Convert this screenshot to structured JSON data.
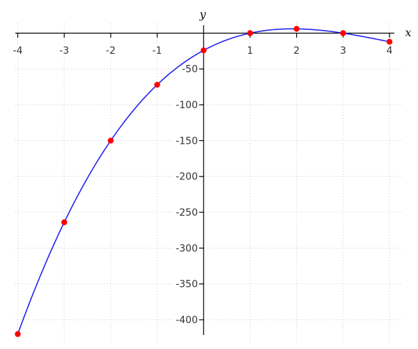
{
  "chart_data": {
    "type": "line",
    "title": "",
    "xlabel": "x",
    "ylabel": "y",
    "x_ticks": [
      -4,
      -3,
      -2,
      -1,
      1,
      2,
      3,
      4
    ],
    "y_ticks": [
      -50,
      -100,
      -150,
      -200,
      -250,
      -300,
      -350,
      -400
    ],
    "points": {
      "x": [
        -4,
        -3,
        -2,
        -1,
        0,
        1,
        2,
        3,
        4
      ],
      "y": [
        -420,
        -264,
        -150,
        -72,
        -24,
        0,
        6,
        0,
        -12
      ]
    },
    "curve": {
      "kind": "cubic-polynomial",
      "coefficients_highest_first": [
        1,
        -12,
        35,
        -24
      ],
      "domain": [
        -4,
        4
      ]
    },
    "series": [
      {
        "name": "interpolating-curve",
        "kind": "line",
        "color": "#2222ee"
      },
      {
        "name": "data-points",
        "kind": "scatter",
        "color": "#ff0000"
      }
    ],
    "xlim": [
      -4.05,
      4.28
    ],
    "ylim": [
      -433,
      14
    ],
    "grid": "dotted",
    "legend": "none",
    "colors": {
      "curve": "#2222ee",
      "points": "#ff0000",
      "axis": "#000000",
      "grid": "#c9c9c9",
      "tick_labels": "#333333",
      "background": "#ffffff"
    }
  }
}
